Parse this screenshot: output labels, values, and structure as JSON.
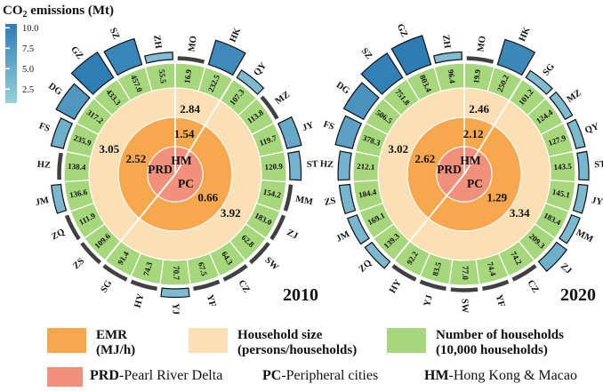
{
  "colorbar": {
    "title_prefix": "CO",
    "title_sub": "2",
    "title_suffix": " emissions (Mt)",
    "ticks": [
      "10.0",
      "7.5",
      "5.0",
      "2.5"
    ],
    "color_top": "#2d7cb4",
    "color_bottom": "#96d2da"
  },
  "style": {
    "ring_emr": "#f7a84e",
    "ring_household": "#fbdfb5",
    "ring_households": "#a7d77c",
    "center_circle": "#f2917b",
    "bar_low": "#93ccd8",
    "bar_high": "#2d7cb4",
    "dark_arc": "#3f4040",
    "divider": "#ffffff"
  },
  "legend": {
    "rings": [
      {
        "line1": "EMR",
        "line2": "(MJ/h)",
        "color": "#f7a84e"
      },
      {
        "line1": "Household size",
        "line2": "(persons/households)",
        "color": "#fbdfb5"
      },
      {
        "line1": "Number of households",
        "line2": "(10,000 households)",
        "color": "#a7d77c"
      }
    ],
    "groups": [
      {
        "abbr": "PRD",
        "name": "-Pearl River Delta",
        "color": "#f2917b"
      },
      {
        "abbr": "PC",
        "name": "-Peripheral cities"
      },
      {
        "abbr": "HM",
        "name": "-Hong Kong & Macao"
      }
    ]
  },
  "chart_data": [
    {
      "type": "radial-rings",
      "year": "2010",
      "rings_meaning": [
        "EMR (MJ/h)",
        "Household size (persons/households)",
        "Number of households (10,000 households)",
        "CO2 emissions bars (Mt)"
      ],
      "groups": [
        {
          "code": "PRD",
          "emr": "2.52",
          "household_size": "3.05"
        },
        {
          "code": "HM",
          "emr": "1.54",
          "household_size": "2.84"
        },
        {
          "code": "PC",
          "emr": "0.66",
          "household_size": "3.92"
        }
      ],
      "cities_clockwise_from_top": [
        {
          "code": "MO",
          "households": "16.9",
          "co2_mt_est": 0.4
        },
        {
          "code": "HK",
          "households": "232.5",
          "co2_mt_est": 8.2
        },
        {
          "code": "QY",
          "households": "107.3",
          "co2_mt_est": 2.2
        },
        {
          "code": "MZ",
          "households": "113.8",
          "co2_mt_est": 0.9
        },
        {
          "code": "JY",
          "households": "119.7",
          "co2_mt_est": 4.4
        },
        {
          "code": "ST",
          "households": "120.9",
          "co2_mt_est": 3.1
        },
        {
          "code": "MM",
          "households": "154.2",
          "co2_mt_est": 1.1
        },
        {
          "code": "ZJ",
          "households": "183.0",
          "co2_mt_est": 1.2
        },
        {
          "code": "SW",
          "households": "62.8",
          "co2_mt_est": 0.5
        },
        {
          "code": "CZ",
          "households": "64.3",
          "co2_mt_est": 0.6
        },
        {
          "code": "YF",
          "households": "67.5",
          "co2_mt_est": 0.7
        },
        {
          "code": "YJ",
          "households": "70.7",
          "co2_mt_est": 2.1
        },
        {
          "code": "HY",
          "households": "74.3",
          "co2_mt_est": 0.6
        },
        {
          "code": "SG",
          "households": "91.4",
          "co2_mt_est": 0.8
        },
        {
          "code": "ZS",
          "households": "109.6",
          "co2_mt_est": 1.0
        },
        {
          "code": "ZQ",
          "households": "111.9",
          "co2_mt_est": 0.9
        },
        {
          "code": "JM",
          "households": "136.6",
          "co2_mt_est": 2.5
        },
        {
          "code": "HZ",
          "households": "138.4",
          "co2_mt_est": 1.2
        },
        {
          "code": "FS",
          "households": "235.9",
          "co2_mt_est": 3.6
        },
        {
          "code": "DG",
          "households": "317.2",
          "co2_mt_est": 6.6
        },
        {
          "code": "GZ",
          "households": "433.3",
          "co2_mt_est": 9.9
        },
        {
          "code": "SZ",
          "households": "457.0",
          "co2_mt_est": 8.8
        },
        {
          "code": "ZH",
          "households": "55.5",
          "co2_mt_est": 1.7
        }
      ]
    },
    {
      "type": "radial-rings",
      "year": "2020",
      "rings_meaning": [
        "EMR (MJ/h)",
        "Household size (persons/households)",
        "Number of households (10,000 households)",
        "CO2 emissions bars (Mt)"
      ],
      "groups": [
        {
          "code": "PRD",
          "emr": "2.62",
          "household_size": "3.02"
        },
        {
          "code": "HM",
          "emr": "2.12",
          "household_size": "2.46"
        },
        {
          "code": "PC",
          "emr": "1.29",
          "household_size": "3.34"
        }
      ],
      "cities_clockwise_from_top": [
        {
          "code": "MO",
          "households": "19.9",
          "co2_mt_est": 0.4
        },
        {
          "code": "HK",
          "households": "250.2",
          "co2_mt_est": 8.5
        },
        {
          "code": "SG",
          "households": "101.2",
          "co2_mt_est": 2.0
        },
        {
          "code": "MZ",
          "households": "124.4",
          "co2_mt_est": 2.1
        },
        {
          "code": "QY",
          "households": "127.9",
          "co2_mt_est": 2.4
        },
        {
          "code": "ST",
          "households": "143.5",
          "co2_mt_est": 2.6
        },
        {
          "code": "JY",
          "households": "145.1",
          "co2_mt_est": 2.4
        },
        {
          "code": "MM",
          "households": "183.4",
          "co2_mt_est": 2.3
        },
        {
          "code": "ZJ",
          "households": "209.3",
          "co2_mt_est": 3.6
        },
        {
          "code": "CZ",
          "households": "74.2",
          "co2_mt_est": 0.7
        },
        {
          "code": "YF",
          "households": "74.4",
          "co2_mt_est": 0.7
        },
        {
          "code": "SW",
          "households": "77.0",
          "co2_mt_est": 0.6
        },
        {
          "code": "YJ",
          "households": "83.5",
          "co2_mt_est": 0.7
        },
        {
          "code": "HY",
          "households": "92.2",
          "co2_mt_est": 0.9
        },
        {
          "code": "ZQ",
          "households": "139.3",
          "co2_mt_est": 2.2
        },
        {
          "code": "JM",
          "households": "169.1",
          "co2_mt_est": 2.7
        },
        {
          "code": "ZS",
          "households": "184.4",
          "co2_mt_est": 2.9
        },
        {
          "code": "HZ",
          "households": "212.1",
          "co2_mt_est": 3.2
        },
        {
          "code": "FS",
          "households": "378.3",
          "co2_mt_est": 5.4
        },
        {
          "code": "DG",
          "households": "506.5",
          "co2_mt_est": 7.2
        },
        {
          "code": "SZ",
          "households": "751.8",
          "co2_mt_est": 9.5
        },
        {
          "code": "GZ",
          "households": "803.4",
          "co2_mt_est": 10.0
        },
        {
          "code": "ZH",
          "households": "96.4",
          "co2_mt_est": 1.8
        }
      ]
    }
  ]
}
